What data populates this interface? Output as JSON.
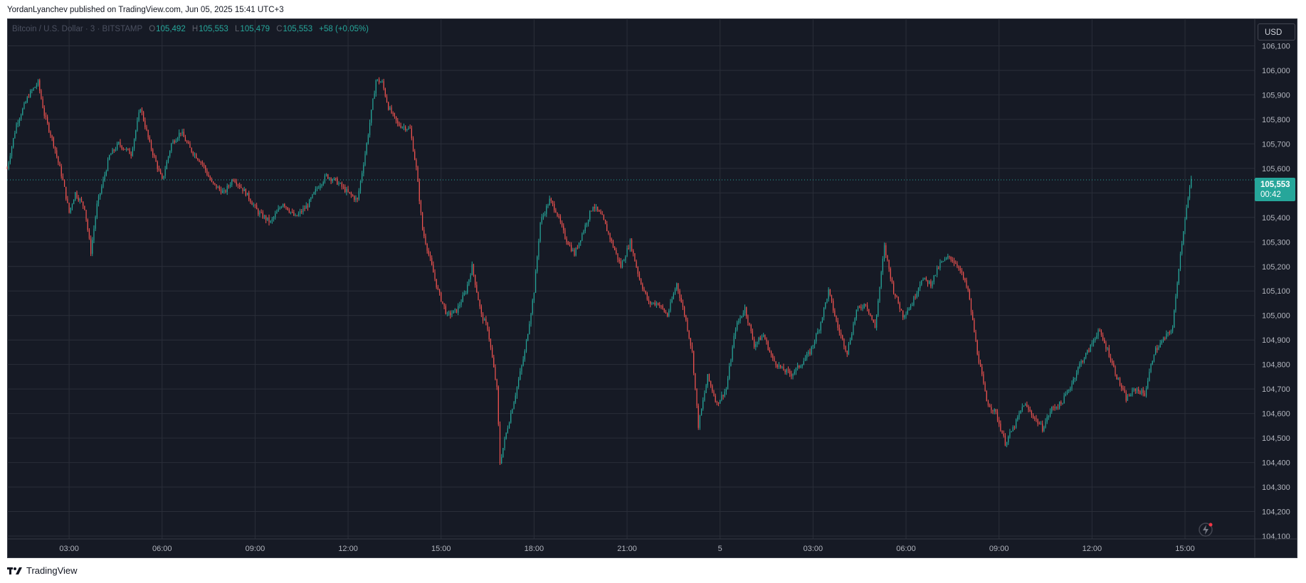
{
  "publisher_line": "YordanLyanchev published on TradingView.com, Jun 05, 2025 15:41 UTC+3",
  "legend": {
    "symbol": "Bitcoin / U.S. Dollar · 3 · BITSTAMP",
    "o_label": "O",
    "o_value": "105,492",
    "h_label": "H",
    "h_value": "105,553",
    "l_label": "L",
    "l_value": "105,479",
    "c_label": "C",
    "c_value": "105,553",
    "change": "+58 (+0.05%)"
  },
  "currency_button": "USD",
  "price_tag": {
    "price": "105,553",
    "countdown": "00:42"
  },
  "footer_brand": "TradingView",
  "colors": {
    "up": "#26a69a",
    "down": "#ef5350",
    "background": "#161a25",
    "grid": "#2a2e39",
    "text": "#b2b5be"
  },
  "chart_data": {
    "type": "candlestick",
    "interval_minutes": 3,
    "ylim": [
      104100,
      106200
    ],
    "y_ticks": [
      104100,
      104200,
      104300,
      104400,
      104500,
      104600,
      104700,
      104800,
      104900,
      105000,
      105100,
      105200,
      105300,
      105400,
      105500,
      105600,
      105700,
      105800,
      105900,
      106000,
      106100
    ],
    "y_tick_labels": [
      "104,100",
      "104,200",
      "104,300",
      "104,400",
      "104,500",
      "104,600",
      "104,700",
      "104,800",
      "104,900",
      "105,000",
      "105,100",
      "105,200",
      "105,300",
      "105,400",
      "105,500",
      "105,600",
      "105,700",
      "105,800",
      "105,900",
      "106,000",
      "106,100"
    ],
    "x_ticks": [
      "03:00",
      "06:00",
      "09:00",
      "12:00",
      "15:00",
      "18:00",
      "21:00",
      "5",
      "03:00",
      "06:00",
      "09:00",
      "12:00",
      "15:00"
    ],
    "x_tick_hours": [
      3,
      6,
      9,
      12,
      15,
      18,
      21,
      24,
      27,
      30,
      33,
      36,
      39
    ],
    "x_range_hours": [
      1.0,
      41.25
    ],
    "last_price": 105553,
    "close_path": [
      [
        1.0,
        105600
      ],
      [
        1.3,
        105780
      ],
      [
        1.7,
        105900
      ],
      [
        2.0,
        105950
      ],
      [
        2.2,
        105820
      ],
      [
        2.5,
        105700
      ],
      [
        2.8,
        105550
      ],
      [
        3.0,
        105420
      ],
      [
        3.2,
        105500
      ],
      [
        3.5,
        105440
      ],
      [
        3.7,
        105260
      ],
      [
        3.9,
        105450
      ],
      [
        4.3,
        105650
      ],
      [
        4.6,
        105700
      ],
      [
        5.0,
        105660
      ],
      [
        5.3,
        105850
      ],
      [
        5.6,
        105700
      ],
      [
        6.0,
        105550
      ],
      [
        6.3,
        105700
      ],
      [
        6.6,
        105750
      ],
      [
        6.9,
        105680
      ],
      [
        7.3,
        105620
      ],
      [
        7.6,
        105540
      ],
      [
        8.0,
        105500
      ],
      [
        8.3,
        105560
      ],
      [
        8.7,
        105500
      ],
      [
        9.1,
        105420
      ],
      [
        9.5,
        105380
      ],
      [
        9.9,
        105460
      ],
      [
        10.3,
        105400
      ],
      [
        10.7,
        105450
      ],
      [
        11.0,
        105520
      ],
      [
        11.3,
        105570
      ],
      [
        11.6,
        105550
      ],
      [
        12.0,
        105500
      ],
      [
        12.3,
        105470
      ],
      [
        12.6,
        105700
      ],
      [
        12.9,
        105960
      ],
      [
        13.1,
        105950
      ],
      [
        13.3,
        105850
      ],
      [
        13.6,
        105780
      ],
      [
        14.0,
        105760
      ],
      [
        14.2,
        105600
      ],
      [
        14.4,
        105350
      ],
      [
        14.7,
        105200
      ],
      [
        14.9,
        105100
      ],
      [
        15.2,
        105000
      ],
      [
        15.5,
        105020
      ],
      [
        15.8,
        105100
      ],
      [
        16.0,
        105200
      ],
      [
        16.3,
        105000
      ],
      [
        16.5,
        104950
      ],
      [
        16.8,
        104700
      ],
      [
        16.9,
        104400
      ],
      [
        17.1,
        104520
      ],
      [
        17.4,
        104680
      ],
      [
        17.7,
        104850
      ],
      [
        18.0,
        105100
      ],
      [
        18.2,
        105380
      ],
      [
        18.5,
        105470
      ],
      [
        18.7,
        105430
      ],
      [
        19.0,
        105320
      ],
      [
        19.3,
        105250
      ],
      [
        19.6,
        105350
      ],
      [
        19.9,
        105450
      ],
      [
        20.2,
        105400
      ],
      [
        20.5,
        105300
      ],
      [
        20.8,
        105200
      ],
      [
        21.1,
        105300
      ],
      [
        21.4,
        105150
      ],
      [
        21.7,
        105050
      ],
      [
        22.0,
        105050
      ],
      [
        22.3,
        105000
      ],
      [
        22.6,
        105130
      ],
      [
        22.9,
        104980
      ],
      [
        23.1,
        104850
      ],
      [
        23.3,
        104550
      ],
      [
        23.6,
        104750
      ],
      [
        23.9,
        104640
      ],
      [
        24.2,
        104700
      ],
      [
        24.5,
        104950
      ],
      [
        24.8,
        105030
      ],
      [
        25.1,
        104880
      ],
      [
        25.4,
        104920
      ],
      [
        25.7,
        104820
      ],
      [
        26.0,
        104780
      ],
      [
        26.3,
        104760
      ],
      [
        26.6,
        104800
      ],
      [
        26.9,
        104850
      ],
      [
        27.2,
        104950
      ],
      [
        27.5,
        105100
      ],
      [
        27.8,
        104950
      ],
      [
        28.1,
        104850
      ],
      [
        28.4,
        105020
      ],
      [
        28.7,
        105050
      ],
      [
        29.0,
        104950
      ],
      [
        29.3,
        105280
      ],
      [
        29.6,
        105100
      ],
      [
        29.9,
        105000
      ],
      [
        30.2,
        105050
      ],
      [
        30.5,
        105150
      ],
      [
        30.8,
        105130
      ],
      [
        31.1,
        105210
      ],
      [
        31.4,
        105240
      ],
      [
        31.7,
        105200
      ],
      [
        32.0,
        105100
      ],
      [
        32.3,
        104850
      ],
      [
        32.6,
        104650
      ],
      [
        32.9,
        104600
      ],
      [
        33.2,
        104480
      ],
      [
        33.5,
        104550
      ],
      [
        33.8,
        104640
      ],
      [
        34.1,
        104590
      ],
      [
        34.4,
        104540
      ],
      [
        34.7,
        104620
      ],
      [
        35.0,
        104640
      ],
      [
        35.3,
        104710
      ],
      [
        35.6,
        104800
      ],
      [
        35.9,
        104860
      ],
      [
        36.2,
        104940
      ],
      [
        36.5,
        104860
      ],
      [
        36.8,
        104750
      ],
      [
        37.1,
        104660
      ],
      [
        37.4,
        104700
      ],
      [
        37.7,
        104680
      ],
      [
        38.0,
        104850
      ],
      [
        38.3,
        104900
      ],
      [
        38.6,
        104950
      ],
      [
        38.8,
        105200
      ],
      [
        39.0,
        105400
      ],
      [
        39.2,
        105553
      ]
    ]
  }
}
